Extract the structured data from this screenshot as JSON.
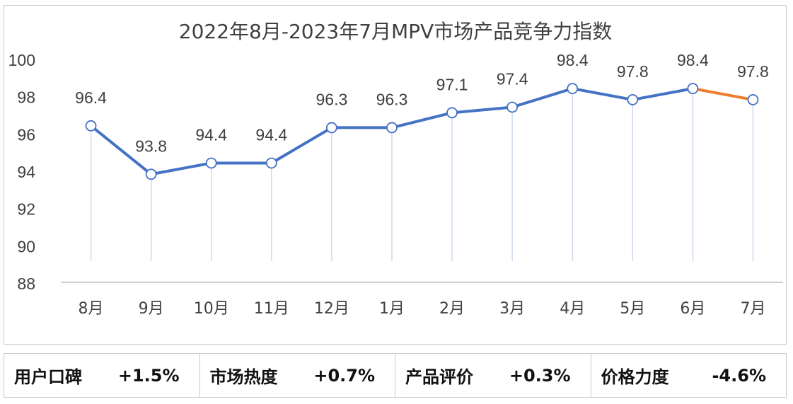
{
  "chart_data": {
    "type": "line",
    "title": "2022年8月-2023年7月MPV市场产品竞争力指数",
    "categories": [
      "8月",
      "9月",
      "10月",
      "11月",
      "12月",
      "1月",
      "2月",
      "3月",
      "4月",
      "5月",
      "6月",
      "7月"
    ],
    "series": [
      {
        "values": [
          96.4,
          93.8,
          94.4,
          94.4,
          96.3,
          96.3,
          97.1,
          97.4,
          98.4,
          97.8,
          98.4,
          97.8
        ]
      }
    ],
    "data_labels": [
      "96.4",
      "93.8",
      "94.4",
      "94.4",
      "96.3",
      "96.3",
      "97.1",
      "97.4",
      "98.4",
      "97.8",
      "98.4",
      "97.8"
    ],
    "ylim": [
      88,
      100
    ],
    "yticks": [
      88,
      90,
      92,
      94,
      96,
      98,
      100
    ],
    "grid": false,
    "colors": {
      "line": "#4472c4",
      "last_segment": "#ed7d31",
      "drop_line": "#cfd9ec",
      "axis": "#bfbfbf",
      "text": "#404040"
    }
  },
  "stats": [
    {
      "label": "用户口碑",
      "value": "+1.5%"
    },
    {
      "label": "市场热度",
      "value": "+0.7%"
    },
    {
      "label": "产品评价",
      "value": "+0.3%"
    },
    {
      "label": "价格力度",
      "value": "-4.6%"
    }
  ]
}
